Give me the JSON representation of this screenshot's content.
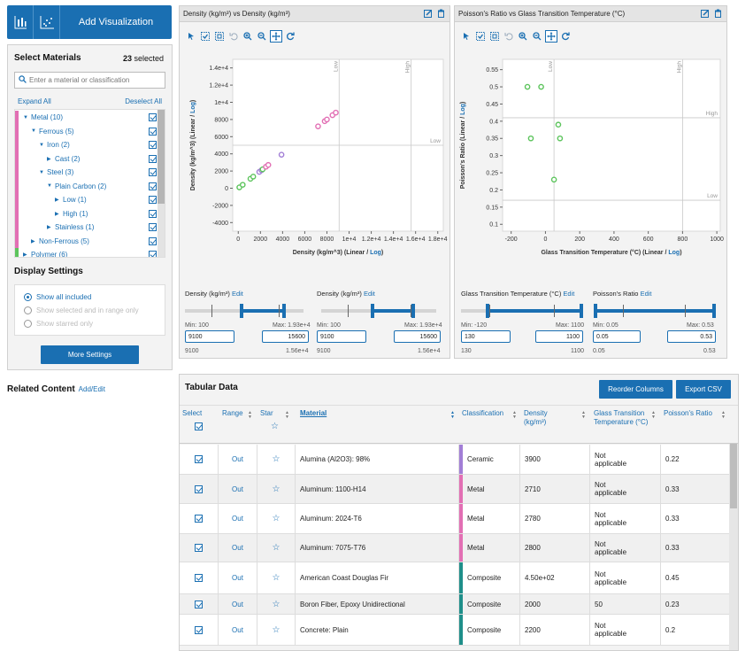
{
  "toolbar": {
    "add_visualization": "Add Visualization",
    "accent": "#1a6fb2"
  },
  "materials": {
    "title": "Select Materials",
    "selected_count": "23",
    "selected_suffix": "selected",
    "search_placeholder": "Enter a material or classification",
    "expand_all": "Expand All",
    "deselect_all": "Deselect All",
    "tree": [
      {
        "label": "Metal (10)",
        "indent": 0,
        "expanded": true,
        "color": "#e26fb4"
      },
      {
        "label": "Ferrous (5)",
        "indent": 1,
        "expanded": true,
        "color": "#e26fb4"
      },
      {
        "label": "Iron (2)",
        "indent": 2,
        "expanded": true,
        "color": "#e26fb4"
      },
      {
        "label": "Cast (2)",
        "indent": 3,
        "expanded": false,
        "color": "#e26fb4"
      },
      {
        "label": "Steel (3)",
        "indent": 2,
        "expanded": true,
        "color": "#e26fb4"
      },
      {
        "label": "Plain Carbon (2)",
        "indent": 3,
        "expanded": true,
        "color": "#e26fb4"
      },
      {
        "label": "Low (1)",
        "indent": 4,
        "expanded": false,
        "color": "#e26fb4"
      },
      {
        "label": "High (1)",
        "indent": 4,
        "expanded": false,
        "color": "#e26fb4"
      },
      {
        "label": "Stainless (1)",
        "indent": 3,
        "expanded": false,
        "color": "#e26fb4"
      },
      {
        "label": "Non-Ferrous (5)",
        "indent": 1,
        "expanded": false,
        "color": "#e26fb4"
      },
      {
        "label": "Polymer (6)",
        "indent": 0,
        "expanded": false,
        "color": "#5cc45c"
      }
    ]
  },
  "display_settings": {
    "title": "Display Settings",
    "options": [
      "Show all included",
      "Show selected and in range only",
      "Show starred only"
    ],
    "selected": "Show all included",
    "more_settings": "More Settings"
  },
  "related": {
    "title": "Related Content",
    "add_edit": "Add/Edit"
  },
  "chart1": {
    "title": "Density (kg/m³) vs Density (kg/m³)",
    "xlabel": "Density (kg/m^3)",
    "ylabel": "Density (kg/m^3)",
    "scale_linear": "Linear",
    "scale_log": "Log",
    "x_ticks": [
      "0",
      "2000",
      "4000",
      "6000",
      "8000",
      "1e+4",
      "1.2e+4",
      "1.4e+4",
      "1.6e+4",
      "1.8e+4"
    ],
    "y_ticks": [
      "1.4e+4",
      "1.2e+4",
      "1e+4",
      "8000",
      "6000",
      "4000",
      "2000",
      "0",
      "-2000",
      "-4000"
    ],
    "ref_low": "Low",
    "ref_high": "High",
    "range1": {
      "label": "Density (kg/m³)",
      "edit": "Edit",
      "min": "Min: 100",
      "max": "Max: 1.93e+4",
      "from": "9100",
      "to": "15600",
      "foot_min": "9100",
      "foot_max": "1.56e+4"
    },
    "range2": {
      "label": "Density (kg/m³)",
      "edit": "Edit",
      "min": "Min: 100",
      "max": "Max: 1.93e+4",
      "from": "9100",
      "to": "15600",
      "foot_min": "9100",
      "foot_max": "1.56e+4"
    }
  },
  "chart2": {
    "title": "Poisson's Ratio vs Glass Transition Temperature (°C)",
    "xlabel": "Glass Transition Temperature (°C)",
    "ylabel": "Poisson's Ratio",
    "scale_linear": "Linear",
    "scale_log": "Log",
    "x_ticks": [
      "-200",
      "0",
      "200",
      "400",
      "600",
      "800",
      "1000"
    ],
    "y_ticks": [
      "0.55",
      "0.5",
      "0.45",
      "0.4",
      "0.35",
      "0.3",
      "0.25",
      "0.2",
      "0.15",
      "0.1"
    ],
    "ref_low": "Low",
    "ref_high": "High",
    "range1": {
      "label": "Glass Transition Temperature (°C)",
      "edit": "Edit",
      "min": "Min: -120",
      "max": "Max: 1100",
      "from": "130",
      "to": "1100",
      "foot_min": "130",
      "foot_max": "1100"
    },
    "range2": {
      "label": "Poisson's Ratio",
      "edit": "Edit",
      "min": "Min: 0.05",
      "max": "Max: 0.53",
      "from": "0.05",
      "to": "0.53",
      "foot_min": "0.05",
      "foot_max": "0.53"
    }
  },
  "chart_data": [
    {
      "type": "scatter",
      "title": "Density (kg/m³) vs Density (kg/m³)",
      "xlabel": "Density (kg/m^3)",
      "ylabel": "Density (kg/m^3)",
      "xlim": [
        -500,
        18500
      ],
      "ylim": [
        -5000,
        15000
      ],
      "ref_x": [
        9100,
        15600
      ],
      "ref_y": [
        5000
      ],
      "points": [
        {
          "x": 100,
          "y": 100,
          "color": "#5cc45c"
        },
        {
          "x": 400,
          "y": 400,
          "color": "#5cc45c"
        },
        {
          "x": 1100,
          "y": 1100,
          "color": "#5cc45c"
        },
        {
          "x": 1350,
          "y": 1350,
          "color": "#5cc45c"
        },
        {
          "x": 1900,
          "y": 1900,
          "color": "#a27ed6"
        },
        {
          "x": 2100,
          "y": 2100,
          "color": "#a27ed6"
        },
        {
          "x": 2200,
          "y": 2200,
          "color": "#5cc45c"
        },
        {
          "x": 2500,
          "y": 2500,
          "color": "#e26fb4"
        },
        {
          "x": 2710,
          "y": 2710,
          "color": "#e26fb4"
        },
        {
          "x": 3900,
          "y": 3900,
          "color": "#a27ed6"
        },
        {
          "x": 7200,
          "y": 7200,
          "color": "#e26fb4"
        },
        {
          "x": 7800,
          "y": 7800,
          "color": "#e26fb4"
        },
        {
          "x": 8000,
          "y": 8000,
          "color": "#e26fb4"
        },
        {
          "x": 8500,
          "y": 8500,
          "color": "#e26fb4"
        },
        {
          "x": 8800,
          "y": 8800,
          "color": "#e26fb4"
        }
      ]
    },
    {
      "type": "scatter",
      "title": "Poisson's Ratio vs Glass Transition Temperature (°C)",
      "xlabel": "Glass Transition Temperature (°C)",
      "ylabel": "Poisson's Ratio",
      "xlim": [
        -250,
        1020
      ],
      "ylim": [
        0.08,
        0.58
      ],
      "ref_x": [
        50,
        800
      ],
      "ref_y": [
        0.41,
        0.17
      ],
      "points": [
        {
          "x": -105,
          "y": 0.5,
          "color": "#5cc45c"
        },
        {
          "x": -25,
          "y": 0.5,
          "color": "#5cc45c"
        },
        {
          "x": -85,
          "y": 0.35,
          "color": "#5cc45c"
        },
        {
          "x": 75,
          "y": 0.39,
          "color": "#5cc45c"
        },
        {
          "x": 85,
          "y": 0.35,
          "color": "#5cc45c"
        },
        {
          "x": 50,
          "y": 0.23,
          "color": "#5cc45c"
        }
      ]
    }
  ],
  "table": {
    "title": "Tabular Data",
    "reorder": "Reorder Columns",
    "export": "Export CSV",
    "headers": {
      "select": "Select",
      "range": "Range",
      "star": "Star",
      "material": "Material",
      "classification": "Classification",
      "density": "Density (kg/m³)",
      "gtt": "Glass Transition Temperature (°C)",
      "poisson": "Poisson's Ratio"
    },
    "rows": [
      {
        "range": "Out",
        "material": "Alumina (Al2O3): 98%",
        "classification": "Ceramic",
        "class_color": "#a27ed6",
        "density": "3900",
        "gtt": "Not applicable",
        "poisson": "0.22"
      },
      {
        "range": "Out",
        "material": "Aluminum: 1100-H14",
        "classification": "Metal",
        "class_color": "#e26fb4",
        "density": "2710",
        "gtt": "Not applicable",
        "poisson": "0.33"
      },
      {
        "range": "Out",
        "material": "Aluminum: 2024-T6",
        "classification": "Metal",
        "class_color": "#e26fb4",
        "density": "2780",
        "gtt": "Not applicable",
        "poisson": "0.33"
      },
      {
        "range": "Out",
        "material": "Aluminum: 7075-T76",
        "classification": "Metal",
        "class_color": "#e26fb4",
        "density": "2800",
        "gtt": "Not applicable",
        "poisson": "0.33"
      },
      {
        "range": "Out",
        "material": "American Coast Douglas Fir",
        "classification": "Composite",
        "class_color": "#1f8f8a",
        "density": "4.50e+02",
        "gtt": "Not applicable",
        "poisson": "0.45"
      },
      {
        "range": "Out",
        "material": "Boron Fiber, Epoxy Unidirectional",
        "classification": "Composite",
        "class_color": "#1f8f8a",
        "density": "2000",
        "gtt": "50",
        "poisson": "0.23"
      },
      {
        "range": "Out",
        "material": "Concrete: Plain",
        "classification": "Composite",
        "class_color": "#1f8f8a",
        "density": "2200",
        "gtt": "Not applicable",
        "poisson": "0.2"
      }
    ]
  }
}
